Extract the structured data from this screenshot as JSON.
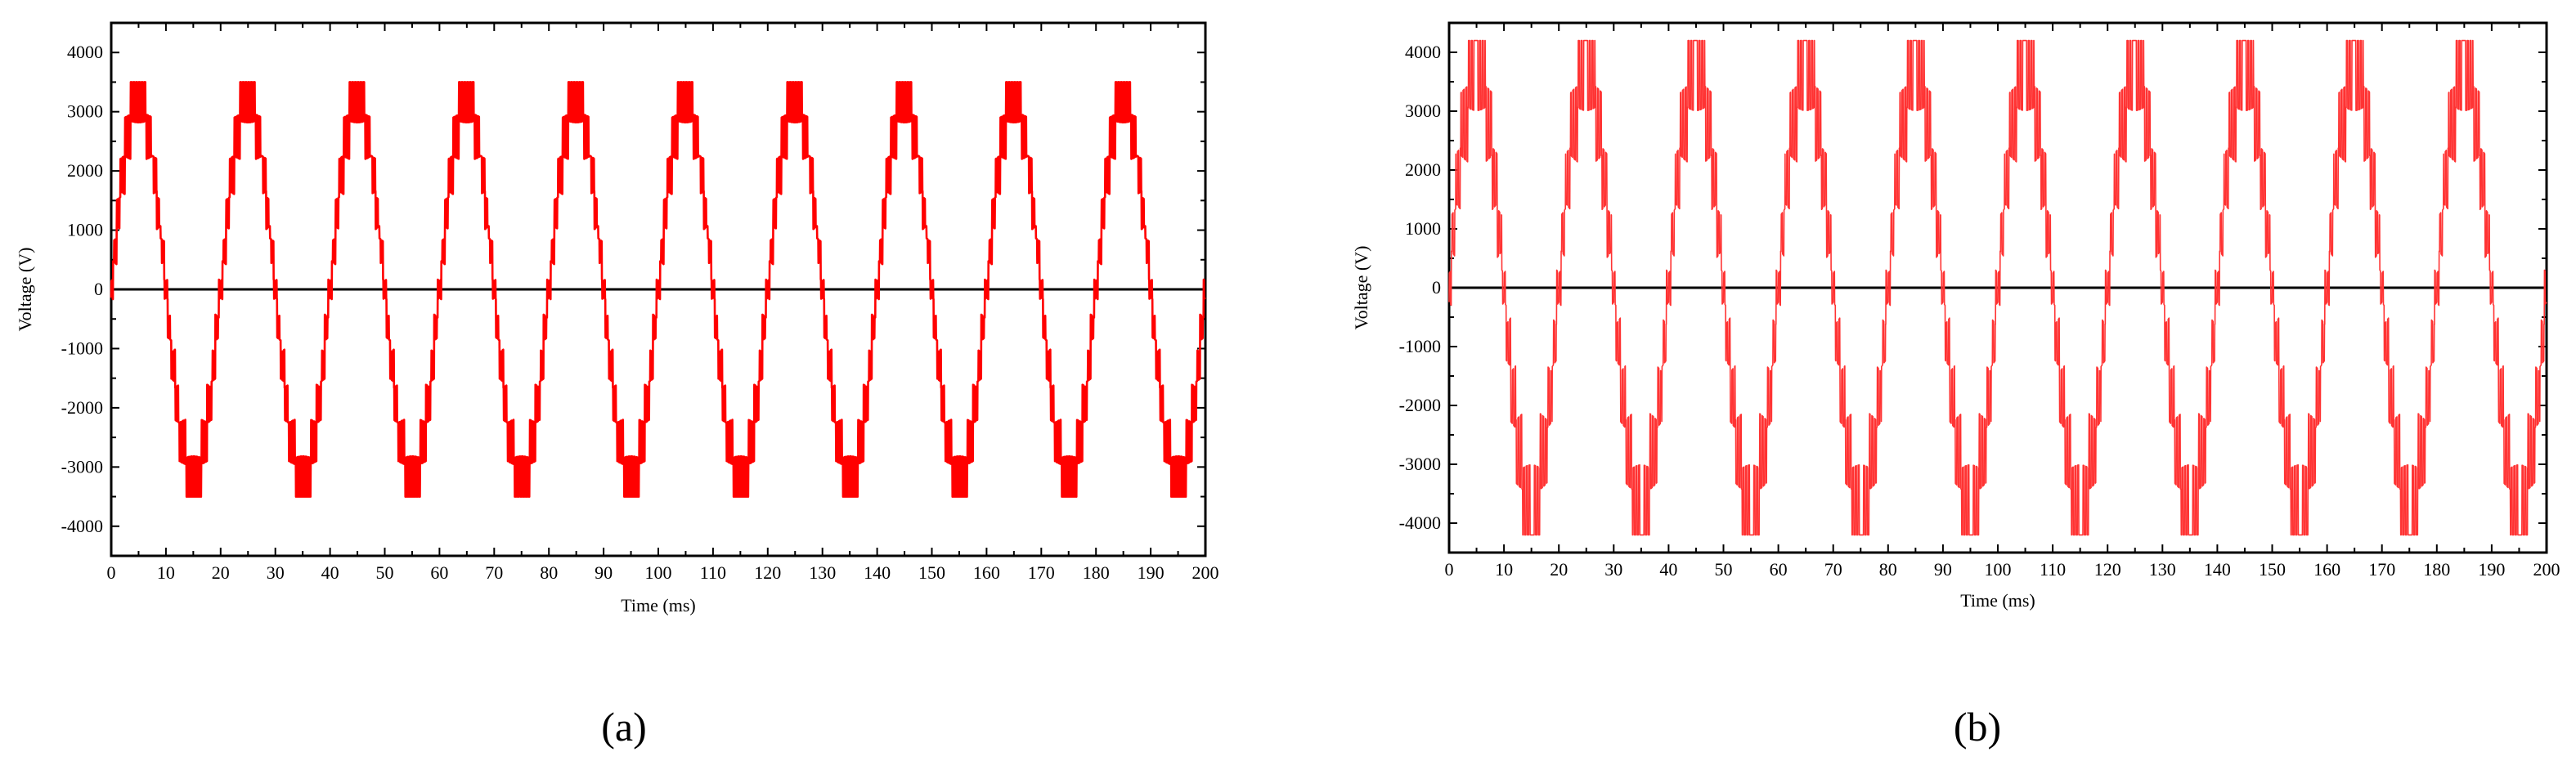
{
  "panels": [
    {
      "caption": "(a)",
      "chart_data": {
        "type": "line",
        "xlabel": "Time (ms)",
        "ylabel": "Voltage (V)",
        "xlim": [
          0,
          200
        ],
        "ylim": [
          -4500,
          4500
        ],
        "x_ticks": [
          0,
          10,
          20,
          30,
          40,
          50,
          60,
          70,
          80,
          90,
          100,
          110,
          120,
          130,
          140,
          150,
          160,
          170,
          180,
          190,
          200
        ],
        "x_tick_labels": [
          "0",
          "10",
          "20",
          "30",
          "40",
          "50",
          "60",
          "70",
          "80",
          "90",
          "100",
          "110",
          "120",
          "130",
          "140",
          "150",
          "160",
          "170",
          "180",
          "190",
          "200"
        ],
        "y_ticks": [
          4000,
          3000,
          2000,
          1000,
          0,
          -1000,
          -2000,
          -3000,
          -4000
        ],
        "y_tick_labels": [
          "4000",
          "3000",
          "2000",
          "1000",
          "0",
          "-1000",
          "-2000",
          "-3000",
          "-4000"
        ],
        "grid": false,
        "zero_line": true,
        "series": [
          {
            "color": "#ff0000",
            "waveform": "multilevel-staircase-sine",
            "period_ms": 20,
            "peak": 3500,
            "levels": 5,
            "ripple": 800,
            "x": [
              0,
              1,
              2,
              3,
              4,
              5,
              6,
              7,
              8,
              9,
              10,
              11,
              12,
              13,
              14,
              15,
              16,
              17,
              18,
              19,
              20
            ],
            "y": [
              0,
              1000,
              2100,
              2800,
              3300,
              3500,
              3300,
              2800,
              2100,
              1000,
              0,
              -1000,
              -2100,
              -2800,
              -3300,
              -3500,
              -3300,
              -2800,
              -2100,
              -1000,
              0
            ]
          }
        ]
      }
    },
    {
      "caption": "(b)",
      "chart_data": {
        "type": "line",
        "xlabel": "Time (ms)",
        "ylabel": "Voltage (V)",
        "xlim": [
          0,
          200
        ],
        "ylim": [
          -4500,
          4500
        ],
        "x_ticks": [
          0,
          10,
          20,
          30,
          40,
          50,
          60,
          70,
          80,
          90,
          100,
          110,
          120,
          130,
          140,
          150,
          160,
          170,
          180,
          190,
          200
        ],
        "x_tick_labels": [
          "0",
          "10",
          "20",
          "30",
          "40",
          "50",
          "60",
          "70",
          "80",
          "90",
          "100",
          "110",
          "120",
          "130",
          "140",
          "150",
          "160",
          "170",
          "180",
          "190",
          "200"
        ],
        "y_ticks": [
          4000,
          3000,
          2000,
          1000,
          0,
          -1000,
          -2000,
          -3000,
          -4000
        ],
        "y_tick_labels": [
          "4000",
          "3000",
          "2000",
          "1000",
          "0",
          "-1000",
          "-2000",
          "-3000",
          "-4000"
        ],
        "grid": false,
        "zero_line": true,
        "series": [
          {
            "color": "#ff3333",
            "waveform": "multilevel-staircase-sine-with-spikes",
            "period_ms": 20,
            "peak": 4200,
            "levels": 4,
            "ripple": 1400,
            "x": [
              0,
              1,
              2,
              3,
              4,
              5,
              6,
              7,
              8,
              9,
              10,
              11,
              12,
              13,
              14,
              15,
              16,
              17,
              18,
              19,
              20
            ],
            "y": [
              0,
              1000,
              2000,
              2500,
              3200,
              4200,
              3200,
              2500,
              2000,
              1000,
              0,
              -1000,
              -2000,
              -2500,
              -3200,
              -4200,
              -3200,
              -2500,
              -2000,
              -1000,
              0
            ]
          }
        ]
      }
    }
  ]
}
